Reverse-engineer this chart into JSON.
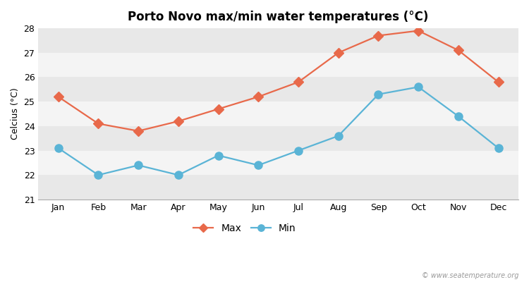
{
  "title": "Porto Novo max/min water temperatures (°C)",
  "ylabel": "Celcius (°C)",
  "months": [
    "Jan",
    "Feb",
    "Mar",
    "Apr",
    "May",
    "Jun",
    "Jul",
    "Aug",
    "Sep",
    "Oct",
    "Nov",
    "Dec"
  ],
  "max_temps": [
    25.2,
    24.1,
    23.8,
    24.2,
    24.7,
    25.2,
    25.8,
    27.0,
    27.7,
    27.9,
    27.1,
    25.8
  ],
  "min_temps": [
    23.1,
    22.0,
    22.4,
    22.0,
    22.8,
    22.4,
    23.0,
    23.6,
    25.3,
    25.6,
    24.4,
    23.1
  ],
  "max_color": "#e8694a",
  "min_color": "#5ab4d6",
  "background_color": "#ffffff",
  "band_color_dark": "#e8e8e8",
  "band_color_light": "#f4f4f4",
  "ylim": [
    21,
    28
  ],
  "yticks": [
    21,
    22,
    23,
    24,
    25,
    26,
    27,
    28
  ],
  "marker_size_max": 7,
  "marker_size_min": 8,
  "line_width": 1.6,
  "title_fontsize": 12,
  "label_fontsize": 9,
  "tick_fontsize": 9,
  "legend_fontsize": 10,
  "watermark": "© www.seatemperature.org"
}
